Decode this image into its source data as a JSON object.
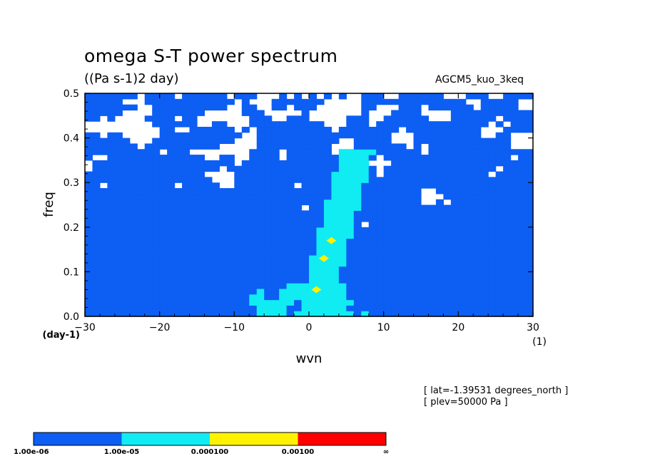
{
  "header": {
    "title": "omega S-T power spectrum",
    "subtitle": "((Pa s-1)2 day)",
    "model": "AGCM5_kuo_3keq"
  },
  "info": {
    "lat": "[ lat=-1.39531 degrees_north ]",
    "plev": "[ plev=50000 Pa ]"
  },
  "chart_data": {
    "type": "heatmap",
    "title": "omega S-T power spectrum",
    "subtitle": "((Pa s-1)2 day)",
    "xlabel": "wvn",
    "ylabel": "freq",
    "xunit": "(1)",
    "yunit": "(day-1)",
    "xlim": [
      -30,
      30
    ],
    "ylim": [
      0,
      0.5
    ],
    "xticks": [
      -30,
      -20,
      -10,
      0,
      10,
      20,
      30
    ],
    "yticks": [
      0.0,
      0.1,
      0.2,
      0.3,
      0.4,
      0.5
    ],
    "xtick_labels": [
      "−30",
      "−20",
      "−10",
      "0",
      "10",
      "20",
      "30"
    ],
    "ytick_labels": [
      "0.0",
      "0.1",
      "0.2",
      "0.3",
      "0.4",
      "0.5"
    ],
    "grid": false,
    "colorbar": {
      "levels": [
        "1.00e-06",
        "1.00e-05",
        "0.000100",
        "0.00100",
        "∞"
      ],
      "colors": [
        "#0d5ef3",
        "#10ecf2",
        "#fff200",
        "#ff0000"
      ]
    },
    "features": {
      "background_level": "1.00e-06 to 1.00e-05",
      "ridge_note": "cyan ridge from wvn 0 at low freq tilting to wvn 6 near freq 0.35",
      "peaks_yellow": [
        {
          "wvn": 1,
          "freq": 0.06
        },
        {
          "wvn": 2,
          "freq": 0.13
        },
        {
          "wvn": 3,
          "freq": 0.17
        }
      ]
    }
  }
}
